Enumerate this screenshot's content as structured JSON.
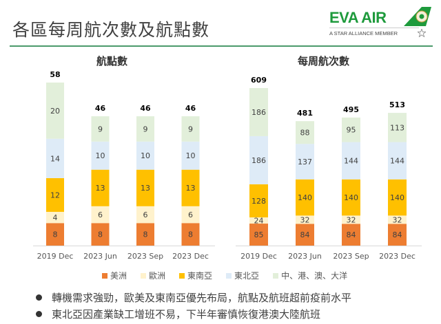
{
  "page": {
    "title": "各區每周航次數及航點數"
  },
  "logo": {
    "brand": "EVA AIR",
    "tagline": "A STAR ALLIANCE MEMBER",
    "icon": "eva-air-tail-logo-icon",
    "star_icon": "star-alliance-icon"
  },
  "legend": [
    {
      "label": "美洲",
      "color": "#ED7D31"
    },
    {
      "label": "歐洲",
      "color": "#FFF2CC"
    },
    {
      "label": "東南亞",
      "color": "#FFC000"
    },
    {
      "label": "東北亞",
      "color": "#DEEBF7"
    },
    {
      "label": "中、港、澳、大洋",
      "color": "#E2EFDA"
    }
  ],
  "bullets": [
    "轉機需求強勁，歐美及東南亞優先布局，航點及航班超前疫前水平",
    "東北亞因產業缺工增班不易，下半年審慎恢復港澳大陸航班"
  ],
  "chart_data": [
    {
      "type": "bar",
      "stacked": true,
      "title": "航點數",
      "categories": [
        "2019 Dec",
        "2023 Jun",
        "2023 Sep",
        "2023 Dec"
      ],
      "series": [
        {
          "name": "美洲",
          "color": "#ED7D31",
          "values": [
            8,
            8,
            8,
            8
          ]
        },
        {
          "name": "歐洲",
          "color": "#FFF2CC",
          "values": [
            4,
            6,
            6,
            6
          ]
        },
        {
          "name": "東南亞",
          "color": "#FFC000",
          "values": [
            12,
            13,
            13,
            13
          ]
        },
        {
          "name": "東北亞",
          "color": "#DEEBF7",
          "values": [
            14,
            10,
            10,
            10
          ]
        },
        {
          "name": "中、港、澳、大洋",
          "color": "#E2EFDA",
          "values": [
            20,
            9,
            9,
            9
          ]
        }
      ],
      "totals": [
        58,
        46,
        46,
        46
      ],
      "xlabel": "",
      "ylabel": "",
      "ylim": [
        0,
        58
      ],
      "grid": false,
      "legend": "bottom"
    },
    {
      "type": "bar",
      "stacked": true,
      "title": "每周航次數",
      "categories": [
        "2019 Dec",
        "2023 Jun",
        "2023 Sep",
        "2023 Dec"
      ],
      "series": [
        {
          "name": "美洲",
          "color": "#ED7D31",
          "values": [
            85,
            84,
            84,
            84
          ]
        },
        {
          "name": "歐洲",
          "color": "#FFF2CC",
          "values": [
            24,
            32,
            32,
            32
          ]
        },
        {
          "name": "東南亞",
          "color": "#FFC000",
          "values": [
            128,
            140,
            140,
            140
          ]
        },
        {
          "name": "東北亞",
          "color": "#DEEBF7",
          "values": [
            186,
            137,
            144,
            144
          ]
        },
        {
          "name": "中、港、澳、大洋",
          "color": "#E2EFDA",
          "values": [
            186,
            88,
            95,
            113
          ]
        }
      ],
      "totals": [
        609,
        481,
        495,
        513
      ],
      "xlabel": "",
      "ylabel": "",
      "ylim": [
        0,
        609
      ],
      "grid": false,
      "legend": "bottom"
    }
  ]
}
